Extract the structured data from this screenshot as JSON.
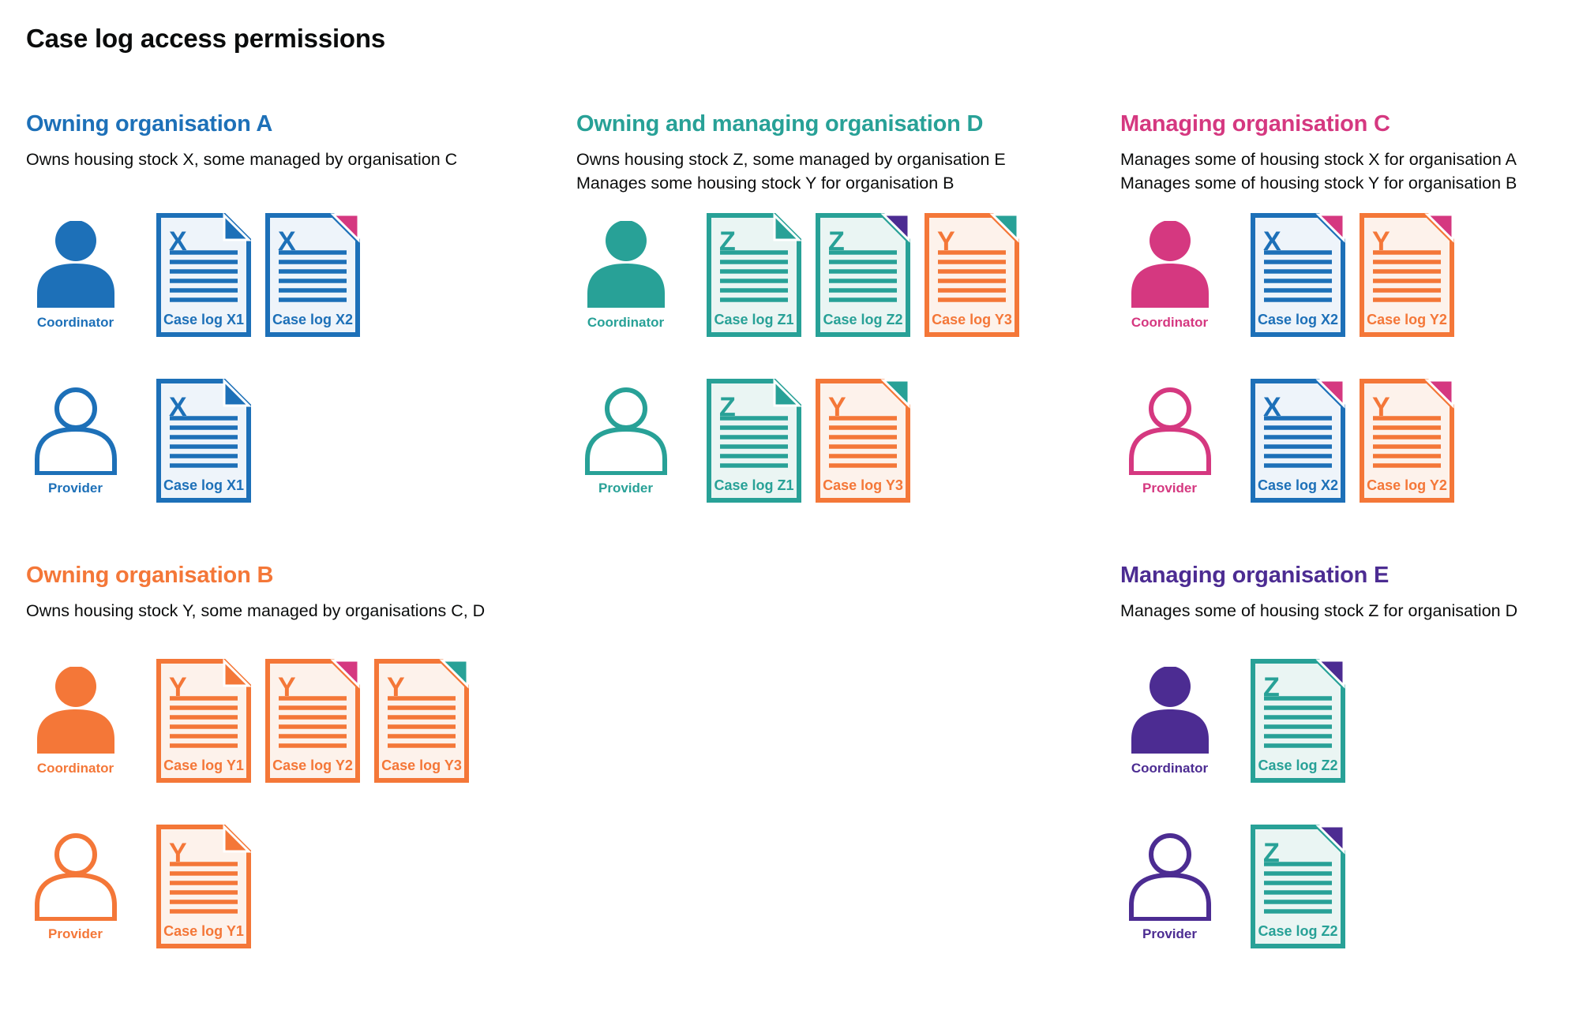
{
  "page": {
    "title": "Case log access permissions"
  },
  "palette": {
    "blue": {
      "main": "#1d70b8",
      "tint": "#eef4fa"
    },
    "teal": {
      "main": "#28a197",
      "tint": "#eaf5f3"
    },
    "pink": {
      "main": "#d53880",
      "tint": "#fbeaf2"
    },
    "orange": {
      "main": "#f47738",
      "tint": "#fdf2eb"
    },
    "purple": {
      "main": "#4c2c92",
      "tint": "#edeaf5"
    },
    "text": "#0b0c0c"
  },
  "sections": [
    {
      "id": "org-a",
      "heading": "Owning organisation A",
      "color": "blue",
      "description_lines": [
        "Owns housing stock X, some managed by organisation C"
      ],
      "rows": [
        {
          "role": "Coordinator",
          "person_style": "filled",
          "docs": [
            {
              "letter": "X",
              "label": "Case log X1",
              "doc_color": "blue",
              "fold_color": "blue",
              "fold_style": "flap"
            },
            {
              "letter": "X",
              "label": "Case log X2",
              "doc_color": "blue",
              "fold_color": "pink",
              "fold_style": "corner"
            }
          ]
        },
        {
          "role": "Provider",
          "person_style": "outline",
          "docs": [
            {
              "letter": "X",
              "label": "Case log X1",
              "doc_color": "blue",
              "fold_color": "blue",
              "fold_style": "flap"
            }
          ]
        }
      ]
    },
    {
      "id": "org-d",
      "heading": "Owning and managing organisation D",
      "color": "teal",
      "description_lines": [
        "Owns housing stock Z, some managed by organisation E",
        "Manages some housing stock Y for organisation B"
      ],
      "rows": [
        {
          "role": "Coordinator",
          "person_style": "filled",
          "docs": [
            {
              "letter": "Z",
              "label": "Case log Z1",
              "doc_color": "teal",
              "fold_color": "teal",
              "fold_style": "flap"
            },
            {
              "letter": "Z",
              "label": "Case log Z2",
              "doc_color": "teal",
              "fold_color": "purple",
              "fold_style": "corner"
            },
            {
              "letter": "Y",
              "label": "Case log Y3",
              "doc_color": "orange",
              "fold_color": "teal",
              "fold_style": "corner"
            }
          ]
        },
        {
          "role": "Provider",
          "person_style": "outline",
          "docs": [
            {
              "letter": "Z",
              "label": "Case log Z1",
              "doc_color": "teal",
              "fold_color": "teal",
              "fold_style": "flap"
            },
            {
              "letter": "Y",
              "label": "Case log Y3",
              "doc_color": "orange",
              "fold_color": "teal",
              "fold_style": "corner"
            }
          ]
        }
      ]
    },
    {
      "id": "org-c",
      "heading": "Managing organisation C",
      "color": "pink",
      "description_lines": [
        "Manages some of housing stock X for organisation A",
        "Manages some of housing stock Y for organisation B"
      ],
      "rows": [
        {
          "role": "Coordinator",
          "person_style": "filled",
          "docs": [
            {
              "letter": "X",
              "label": "Case log X2",
              "doc_color": "blue",
              "fold_color": "pink",
              "fold_style": "corner"
            },
            {
              "letter": "Y",
              "label": "Case log Y2",
              "doc_color": "orange",
              "fold_color": "pink",
              "fold_style": "corner"
            }
          ]
        },
        {
          "role": "Provider",
          "person_style": "outline",
          "docs": [
            {
              "letter": "X",
              "label": "Case log X2",
              "doc_color": "blue",
              "fold_color": "pink",
              "fold_style": "corner"
            },
            {
              "letter": "Y",
              "label": "Case log Y2",
              "doc_color": "orange",
              "fold_color": "pink",
              "fold_style": "corner"
            }
          ]
        }
      ]
    },
    {
      "id": "org-b",
      "heading": "Owning organisation B",
      "color": "orange",
      "description_lines": [
        "Owns housing stock Y, some managed by organisations C, D"
      ],
      "rows": [
        {
          "role": "Coordinator",
          "person_style": "filled",
          "docs": [
            {
              "letter": "Y",
              "label": "Case log Y1",
              "doc_color": "orange",
              "fold_color": "orange",
              "fold_style": "flap"
            },
            {
              "letter": "Y",
              "label": "Case log Y2",
              "doc_color": "orange",
              "fold_color": "pink",
              "fold_style": "corner"
            },
            {
              "letter": "Y",
              "label": "Case log Y3",
              "doc_color": "orange",
              "fold_color": "teal",
              "fold_style": "corner"
            }
          ]
        },
        {
          "role": "Provider",
          "person_style": "outline",
          "docs": [
            {
              "letter": "Y",
              "label": "Case log Y1",
              "doc_color": "orange",
              "fold_color": "orange",
              "fold_style": "flap"
            }
          ]
        }
      ]
    },
    {
      "id": "org-e",
      "heading": "Managing organisation E",
      "color": "purple",
      "description_lines": [
        "Manages some of housing stock Z for organisation D"
      ],
      "rows": [
        {
          "role": "Coordinator",
          "person_style": "filled",
          "docs": [
            {
              "letter": "Z",
              "label": "Case log Z2",
              "doc_color": "teal",
              "fold_color": "purple",
              "fold_style": "corner"
            }
          ]
        },
        {
          "role": "Provider",
          "person_style": "outline",
          "docs": [
            {
              "letter": "Z",
              "label": "Case log Z2",
              "doc_color": "teal",
              "fold_color": "purple",
              "fold_style": "corner"
            }
          ]
        }
      ]
    }
  ]
}
